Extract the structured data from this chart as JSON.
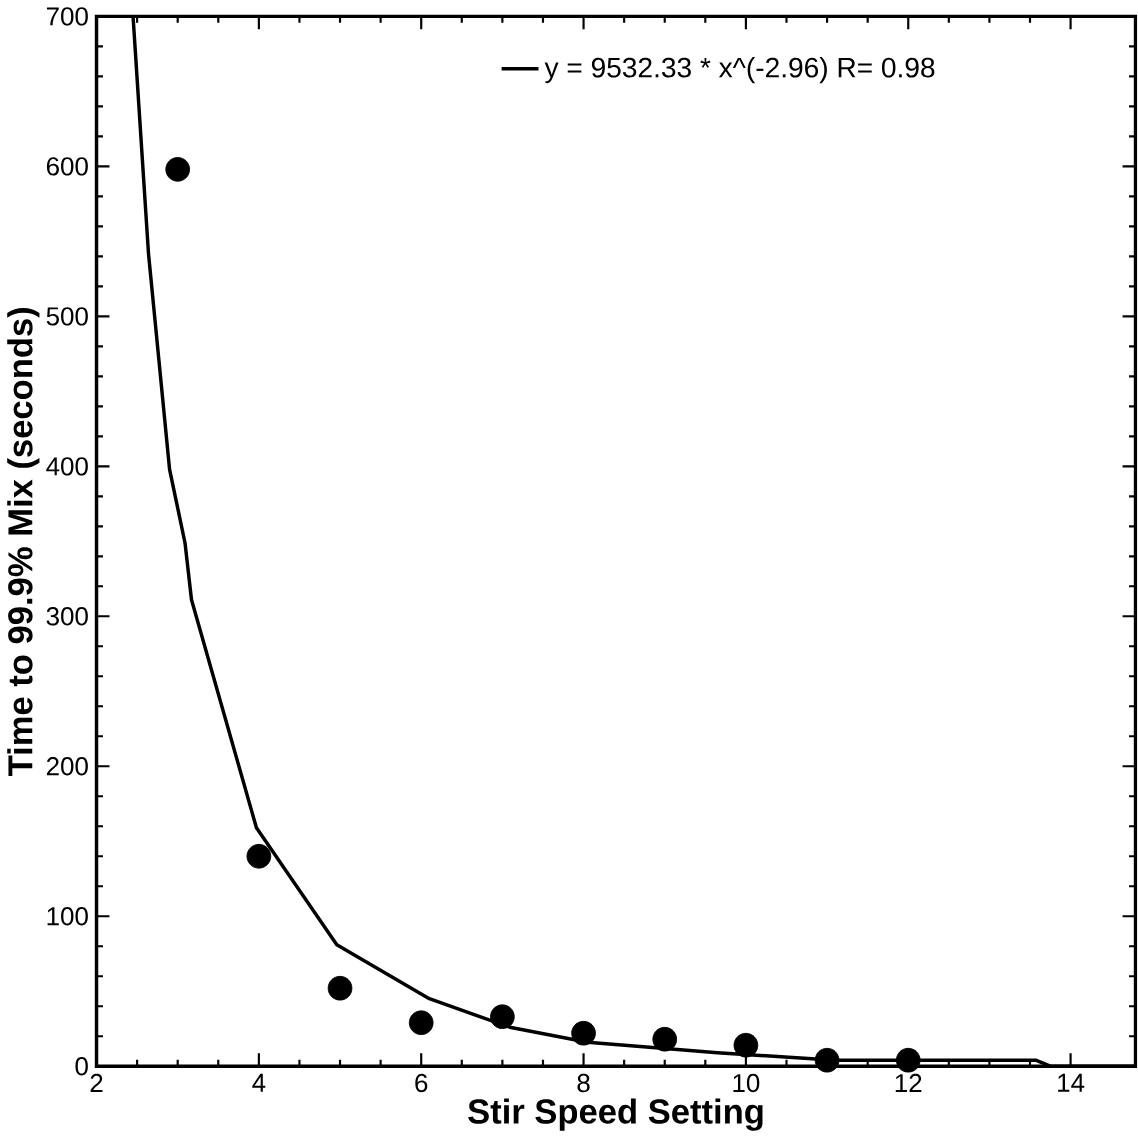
{
  "chart_data": {
    "type": "scatter",
    "xlabel": "Stir Speed Setting",
    "ylabel": "Time to 99.9% Mix (seconds)",
    "xlim": [
      2,
      14.8
    ],
    "ylim": [
      0,
      700
    ],
    "xticks": [
      2,
      4,
      6,
      8,
      10,
      12,
      14
    ],
    "yticks": [
      0,
      100,
      200,
      300,
      400,
      500,
      600,
      700
    ],
    "marker": "circle",
    "legend": "top",
    "series": [
      {
        "color": "#000000",
        "x": [
          3,
          4,
          5,
          6,
          7,
          8,
          9,
          10,
          11,
          12
        ],
        "values": [
          598,
          140,
          52,
          29,
          33,
          22,
          18,
          14,
          4,
          4
        ]
      },
      {
        "type": "line",
        "name": "y = 9532.33 * x^(-2.96)   R= 0.98",
        "color": "#000000",
        "marker": "none",
        "line_style": "solid",
        "x": [
          2.45,
          2.64,
          2.9,
          3.09,
          3.17,
          3.97,
          4.96,
          6.1,
          7.09,
          8.05,
          9.65,
          11.1,
          13.57,
          13.75,
          14.8
        ],
        "values": [
          700,
          542,
          398,
          349,
          311,
          159,
          81,
          45,
          26,
          16,
          9,
          4,
          4,
          0,
          0
        ]
      }
    ]
  }
}
